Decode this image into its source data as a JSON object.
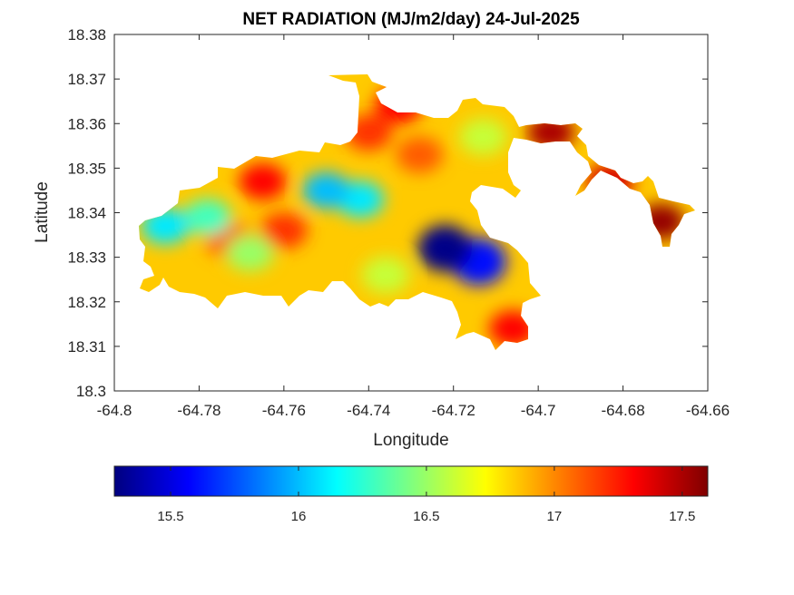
{
  "chart_data": {
    "type": "heatmap",
    "title": "NET RADIATION (MJ/m2/day) 24-Jul-2025",
    "xlabel": "Longitude",
    "ylabel": "Latitude",
    "xlim": [
      -64.8,
      -64.66
    ],
    "ylim": [
      18.3,
      18.38
    ],
    "x_ticks": [
      "-64.8",
      "-64.78",
      "-64.76",
      "-64.74",
      "-64.72",
      "-64.7",
      "-64.68",
      "-64.66"
    ],
    "y_ticks": [
      "18.3",
      "18.31",
      "18.32",
      "18.33",
      "18.34",
      "18.35",
      "18.36",
      "18.37",
      "18.38"
    ],
    "colorbar": {
      "range": [
        15.28,
        17.6
      ],
      "ticks": [
        "15.5",
        "16",
        "16.5",
        "17",
        "17.5"
      ],
      "colormap": "jet",
      "colors": [
        "#00007f",
        "#0000ff",
        "#007fff",
        "#00ffff",
        "#7fff7f",
        "#ffff00",
        "#ff7f00",
        "#ff0000",
        "#7f0000"
      ]
    },
    "grid": false,
    "hotspots": [
      {
        "lon": -64.722,
        "lat": 18.332,
        "value": 15.3
      },
      {
        "lon": -64.714,
        "lat": 18.329,
        "value": 15.6
      },
      {
        "lon": -64.742,
        "lat": 18.343,
        "value": 16.1
      },
      {
        "lon": -64.75,
        "lat": 18.345,
        "value": 16.0
      },
      {
        "lon": -64.788,
        "lat": 18.337,
        "value": 16.1
      },
      {
        "lon": -64.778,
        "lat": 18.339,
        "value": 16.3
      },
      {
        "lon": -64.713,
        "lat": 18.357,
        "value": 16.6
      },
      {
        "lon": -64.768,
        "lat": 18.331,
        "value": 16.5
      },
      {
        "lon": -64.736,
        "lat": 18.326,
        "value": 16.6
      },
      {
        "lon": -64.773,
        "lat": 18.334,
        "value": 17.1
      },
      {
        "lon": -64.76,
        "lat": 18.336,
        "value": 17.2
      },
      {
        "lon": -64.765,
        "lat": 18.347,
        "value": 17.3
      },
      {
        "lon": -64.728,
        "lat": 18.353,
        "value": 17.1
      },
      {
        "lon": -64.733,
        "lat": 18.364,
        "value": 17.3
      },
      {
        "lon": -64.74,
        "lat": 18.358,
        "value": 17.2
      },
      {
        "lon": -64.706,
        "lat": 18.314,
        "value": 17.3
      },
      {
        "lon": -64.671,
        "lat": 18.338,
        "value": 17.55
      },
      {
        "lon": -64.697,
        "lat": 18.358,
        "value": 17.5
      },
      {
        "lon": -64.683,
        "lat": 18.347,
        "value": 17.4
      }
    ]
  }
}
